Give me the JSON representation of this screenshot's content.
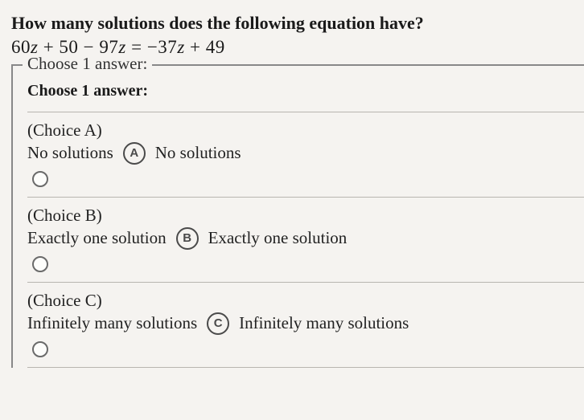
{
  "question": "How many solutions does the following equation have?",
  "equation_parts": {
    "p1": "60",
    "v1": "z",
    "p2": " + 50 − 97",
    "v2": "z",
    "p3": " = −37",
    "v3": "z",
    "p4": " + 49"
  },
  "legend": "Choose 1 answer:",
  "prompt": "Choose 1 answer:",
  "choices": [
    {
      "label": "(Choice A)",
      "title": "No solutions",
      "letter": "A",
      "text": "No solutions"
    },
    {
      "label": "(Choice B)",
      "title": "Exactly one solution",
      "letter": "B",
      "text": "Exactly one solution"
    },
    {
      "label": "(Choice C)",
      "title": "Infinitely many solutions",
      "letter": "C",
      "text": "Infinitely many solutions"
    }
  ],
  "colors": {
    "background": "#f5f3f0",
    "text": "#1a1a1a",
    "border": "#888",
    "divider": "#b8b5b0",
    "badge_border": "#4a4a4a",
    "radio_border": "#6a6a6a"
  },
  "typography": {
    "question_fontsize": 22,
    "equation_fontsize": 23,
    "body_fontsize": 21,
    "badge_fontsize": 15
  }
}
